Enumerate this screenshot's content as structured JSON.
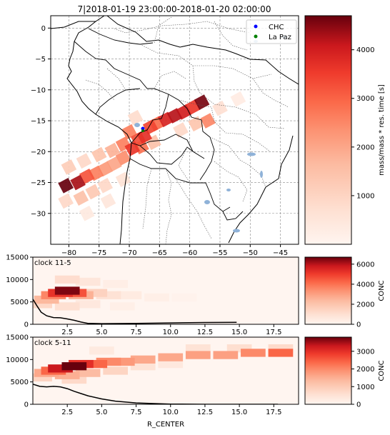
{
  "title": "7|2018-01-19 23:00:00-2018-01-20 02:00:00",
  "colors": {
    "red_dark": "#67000d",
    "red_mid": "#ef3b2c",
    "red_light": "#fcbba1",
    "red_pale": "#fff5f0",
    "chc_marker": "#0000ff",
    "lapaz_marker": "#008000",
    "lake_blue": "#8fb2d8",
    "profile_line": "#000000"
  },
  "chart_data": [
    {
      "id": "map",
      "type": "heatmap",
      "title": "7|2018-01-19 23:00:00-2018-01-20 02:00:00",
      "xlim": [
        -83,
        -42
      ],
      "ylim": [
        -35,
        2
      ],
      "x_ticks": [
        -80,
        -75,
        -70,
        -65,
        -60,
        -55,
        -50,
        -45
      ],
      "x_tick_labels": [
        "−80",
        "−75",
        "−70",
        "−65",
        "−60",
        "−55",
        "−50",
        "−45"
      ],
      "y_ticks": [
        0,
        -5,
        -10,
        -15,
        -20,
        -25,
        -30
      ],
      "y_tick_labels": [
        "0",
        "−5",
        "−10",
        "−15",
        "−20",
        "−25",
        "−30"
      ],
      "grid": true,
      "legend_position": "top-right",
      "legend": [
        {
          "label": "CHC",
          "color": "#0000ff"
        },
        {
          "label": "La Paz",
          "color": "#008000"
        }
      ],
      "stations": [
        {
          "name": "CHC",
          "lon": -68.1,
          "lat": -16.2,
          "color": "#0000ff"
        },
        {
          "name": "La Paz",
          "lon": -68.1,
          "lat": -16.5,
          "color": "#008000"
        }
      ],
      "plume_cells": [
        {
          "lon": -80.5,
          "lat": -25.5,
          "value": 4700
        },
        {
          "lon": -78.5,
          "lat": -25.0,
          "value": 4300
        },
        {
          "lon": -77.0,
          "lat": -24.0,
          "value": 3200
        },
        {
          "lon": -75.5,
          "lat": -23.5,
          "value": 2600
        },
        {
          "lon": -74.0,
          "lat": -22.8,
          "value": 2200
        },
        {
          "lon": -72.5,
          "lat": -22.0,
          "value": 2000
        },
        {
          "lon": -71.0,
          "lat": -21.0,
          "value": 2400
        },
        {
          "lon": -69.5,
          "lat": -19.5,
          "value": 3600
        },
        {
          "lon": -80.5,
          "lat": -28.0,
          "value": 900
        },
        {
          "lon": -78.0,
          "lat": -27.5,
          "value": 1500
        },
        {
          "lon": -76.0,
          "lat": -26.5,
          "value": 1300
        },
        {
          "lon": -74.0,
          "lat": -25.5,
          "value": 900
        },
        {
          "lon": -80.0,
          "lat": -22.5,
          "value": 1200
        },
        {
          "lon": -77.5,
          "lat": -21.5,
          "value": 900
        },
        {
          "lon": -75.0,
          "lat": -20.5,
          "value": 1400
        },
        {
          "lon": -72.8,
          "lat": -19.8,
          "value": 1800
        },
        {
          "lon": -71.0,
          "lat": -18.8,
          "value": 2600
        },
        {
          "lon": -68.5,
          "lat": -18.0,
          "value": 3300
        },
        {
          "lon": -67.5,
          "lat": -17.5,
          "value": 3700
        },
        {
          "lon": -66.5,
          "lat": -16.0,
          "value": 3400
        },
        {
          "lon": -65.5,
          "lat": -15.5,
          "value": 2900
        },
        {
          "lon": -64.0,
          "lat": -14.8,
          "value": 3900
        },
        {
          "lon": -62.5,
          "lat": -14.2,
          "value": 4200
        },
        {
          "lon": -61.0,
          "lat": -13.6,
          "value": 4000
        },
        {
          "lon": -59.5,
          "lat": -12.8,
          "value": 3600
        },
        {
          "lon": -58.0,
          "lat": -12.0,
          "value": 4600
        },
        {
          "lon": -57.0,
          "lat": -15.0,
          "value": 2500
        },
        {
          "lon": -59.0,
          "lat": -15.5,
          "value": 1400
        },
        {
          "lon": -61.5,
          "lat": -16.5,
          "value": 900
        },
        {
          "lon": -55.0,
          "lat": -13.0,
          "value": 700
        },
        {
          "lon": -52.0,
          "lat": -11.5,
          "value": 300
        },
        {
          "lon": -66.0,
          "lat": -18.5,
          "value": 1500
        },
        {
          "lon": -68.0,
          "lat": -19.2,
          "value": 2800
        },
        {
          "lon": -70.0,
          "lat": -16.8,
          "value": 2600
        },
        {
          "lon": -69.0,
          "lat": -14.5,
          "value": 800
        },
        {
          "lon": -73.5,
          "lat": -28.0,
          "value": 500
        },
        {
          "lon": -77.0,
          "lat": -30.0,
          "value": 400
        },
        {
          "lon": -71.0,
          "lat": -24.5,
          "value": 600
        }
      ]
    },
    {
      "id": "map_colorbar",
      "type": "heatmap",
      "ylabel": "mass/mass * res. time [s]",
      "ylim": [
        0,
        4700
      ],
      "ticks": [
        1000,
        2000,
        3000,
        4000
      ],
      "tick_labels": [
        "1000",
        "2000",
        "3000",
        "4000"
      ]
    },
    {
      "id": "clock_11_5",
      "type": "heatmap",
      "label": "clock 11-5",
      "xlim": [
        0,
        19.3
      ],
      "ylim": [
        0,
        15000
      ],
      "x_ticks": [
        2.5,
        5.0,
        7.5,
        10.0,
        12.5,
        15.0,
        17.5
      ],
      "x_tick_labels": [
        "2.5",
        "5.0",
        "7.5",
        "10.0",
        "12.5",
        "15.0",
        "17.5"
      ],
      "y_ticks": [
        0,
        5000,
        10000,
        15000
      ],
      "y_tick_labels": [
        "0",
        "5000",
        "10000",
        "15000"
      ],
      "profile_line": {
        "x": [
          0.0,
          0.3,
          0.6,
          1.0,
          1.5,
          2.0,
          2.5,
          3.0,
          3.5,
          4.0,
          5.0,
          7.5,
          10.0,
          12.5,
          14.8
        ],
        "y": [
          5600,
          4100,
          2700,
          1900,
          1500,
          1450,
          1200,
          900,
          500,
          200,
          150,
          200,
          300,
          400,
          450
        ]
      },
      "cells": [
        {
          "x": 2.5,
          "y": 7500,
          "value": 6500
        },
        {
          "x": 2.0,
          "y": 7000,
          "value": 5200
        },
        {
          "x": 3.0,
          "y": 7000,
          "value": 4600
        },
        {
          "x": 1.5,
          "y": 6500,
          "value": 3600
        },
        {
          "x": 3.5,
          "y": 6500,
          "value": 2600
        },
        {
          "x": 1.0,
          "y": 5500,
          "value": 2400
        },
        {
          "x": 4.5,
          "y": 7000,
          "value": 1500
        },
        {
          "x": 5.5,
          "y": 6500,
          "value": 900
        },
        {
          "x": 0.5,
          "y": 4500,
          "value": 1300
        },
        {
          "x": 7.0,
          "y": 6500,
          "value": 500
        },
        {
          "x": 9.0,
          "y": 6000,
          "value": 300
        },
        {
          "x": 11.0,
          "y": 6000,
          "value": 150
        },
        {
          "x": 2.5,
          "y": 10000,
          "value": 1100
        },
        {
          "x": 4.0,
          "y": 9500,
          "value": 700
        },
        {
          "x": 6.0,
          "y": 9000,
          "value": 350
        },
        {
          "x": 2.5,
          "y": 4000,
          "value": 1000
        },
        {
          "x": 4.0,
          "y": 4500,
          "value": 600
        },
        {
          "x": 6.5,
          "y": 4000,
          "value": 300
        }
      ]
    },
    {
      "id": "clock_11_5_colorbar",
      "type": "heatmap",
      "ylabel": "CONC",
      "ylim": [
        0,
        6700
      ],
      "ticks": [
        0,
        2000,
        4000,
        6000
      ],
      "tick_labels": [
        "0",
        "2000",
        "4000",
        "6000"
      ]
    },
    {
      "id": "clock_5_11",
      "type": "heatmap",
      "label": "clock 5-11",
      "xlim": [
        0,
        19.3
      ],
      "ylim": [
        0,
        15000
      ],
      "x_ticks": [
        2.5,
        5.0,
        7.5,
        10.0,
        12.5,
        15.0,
        17.5
      ],
      "x_tick_labels": [
        "2.5",
        "5.0",
        "7.5",
        "10.0",
        "12.5",
        "15.0",
        "17.5"
      ],
      "y_ticks": [
        0,
        5000,
        10000,
        15000
      ],
      "y_tick_labels": [
        "0",
        "5000",
        "10000",
        "15000"
      ],
      "xlabel": "R_CENTER",
      "profile_line": {
        "x": [
          0.0,
          0.5,
          1.0,
          1.5,
          2.0,
          2.5,
          3.0,
          3.5,
          4.0,
          5.0,
          6.0,
          7.5,
          10.0,
          12.5,
          15.0,
          17.8
        ],
        "y": [
          4500,
          4000,
          3900,
          4000,
          3900,
          3500,
          2900,
          2400,
          1900,
          1200,
          700,
          300,
          50,
          0,
          0,
          0
        ]
      },
      "cells": [
        {
          "x": 3.0,
          "y": 8500,
          "value": 3800
        },
        {
          "x": 2.0,
          "y": 8000,
          "value": 3300
        },
        {
          "x": 3.5,
          "y": 9000,
          "value": 3000
        },
        {
          "x": 1.5,
          "y": 7500,
          "value": 2400
        },
        {
          "x": 4.5,
          "y": 9000,
          "value": 2400
        },
        {
          "x": 5.5,
          "y": 9500,
          "value": 2000
        },
        {
          "x": 1.0,
          "y": 7000,
          "value": 1600
        },
        {
          "x": 6.5,
          "y": 9500,
          "value": 1800
        },
        {
          "x": 8.0,
          "y": 10000,
          "value": 1600
        },
        {
          "x": 10.0,
          "y": 10500,
          "value": 1600
        },
        {
          "x": 12.0,
          "y": 11000,
          "value": 1700
        },
        {
          "x": 14.0,
          "y": 11000,
          "value": 1700
        },
        {
          "x": 16.0,
          "y": 11500,
          "value": 2000
        },
        {
          "x": 18.0,
          "y": 11500,
          "value": 2400
        },
        {
          "x": 0.5,
          "y": 6000,
          "value": 800
        },
        {
          "x": 2.5,
          "y": 6500,
          "value": 1500
        },
        {
          "x": 4.0,
          "y": 7000,
          "value": 1300
        },
        {
          "x": 6.0,
          "y": 7500,
          "value": 800
        },
        {
          "x": 8.0,
          "y": 8500,
          "value": 500
        },
        {
          "x": 10.0,
          "y": 9000,
          "value": 350
        },
        {
          "x": 12.0,
          "y": 12500,
          "value": 500
        },
        {
          "x": 15.0,
          "y": 12500,
          "value": 600
        },
        {
          "x": 18.0,
          "y": 12500,
          "value": 700
        },
        {
          "x": 5.0,
          "y": 12000,
          "value": 300
        },
        {
          "x": 3.0,
          "y": 5500,
          "value": 700
        }
      ]
    },
    {
      "id": "clock_5_11_colorbar",
      "type": "heatmap",
      "ylabel": "CONC",
      "ylim": [
        0,
        3800
      ],
      "ticks": [
        0,
        1000,
        2000,
        3000
      ],
      "tick_labels": [
        "0",
        "1000",
        "2000",
        "3000"
      ]
    }
  ]
}
